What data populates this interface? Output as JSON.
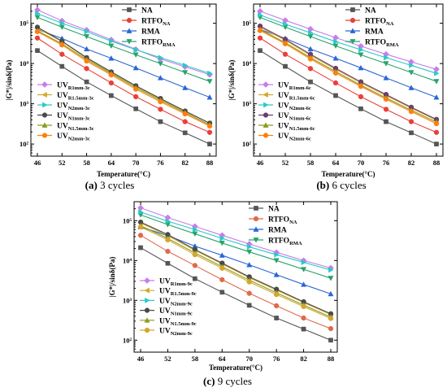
{
  "chart_data": [
    {
      "id": "a",
      "type": "line",
      "caption_letter": "(a)",
      "caption_text": "3 cycles",
      "xlabel": "Temperature(°C)",
      "ylabel": "|G*|/sinδ(Pa)",
      "x": [
        46,
        52,
        58,
        64,
        70,
        76,
        82,
        88
      ],
      "y_scale": "log",
      "ylim": [
        50,
        300000
      ],
      "y_ticks": [
        100,
        1000,
        10000,
        100000
      ],
      "y_tick_labels": [
        "10²",
        "10³",
        "10⁴",
        "10⁵"
      ],
      "series": [
        {
          "name": "NA",
          "sub": "",
          "color": "#555555",
          "marker": "square",
          "values": [
            21000,
            8500,
            3500,
            1600,
            750,
            360,
            190,
            100
          ]
        },
        {
          "name": "RTFO",
          "sub": "NA",
          "color": "#e8403a",
          "marker": "circle",
          "values": [
            43000,
            17000,
            7500,
            3300,
            1500,
            730,
            360,
            195
          ]
        },
        {
          "name": "RMA",
          "sub": "",
          "color": "#2a66d6",
          "marker": "triangle-up",
          "values": [
            70000,
            42000,
            23000,
            13500,
            7800,
            4400,
            2500,
            1450
          ]
        },
        {
          "name": "RTFO",
          "sub": "RMA",
          "color": "#2aa36a",
          "marker": "triangle-down",
          "values": [
            140000,
            80000,
            47000,
            27500,
            16500,
            10000,
            6000,
            3600
          ]
        },
        {
          "name": "UV",
          "sub": "R1mm-3c",
          "color": "#c77dea",
          "marker": "diamond",
          "values": [
            215000,
            115000,
            68000,
            39000,
            22500,
            13000,
            8300,
            5300
          ]
        },
        {
          "name": "UV",
          "sub": "R1.5mm-3c",
          "color": "#d4a72c",
          "marker": "triangle-left",
          "values": [
            75000,
            35000,
            13500,
            5900,
            2700,
            1300,
            640,
            330
          ]
        },
        {
          "name": "UV",
          "sub": "N2mm-3c",
          "color": "#2ac9c6",
          "marker": "triangle-right",
          "values": [
            175000,
            100000,
            62000,
            36000,
            22000,
            14000,
            9000,
            5700
          ]
        },
        {
          "name": "UV",
          "sub": "N1mm-3c",
          "color": "#4a4a4a",
          "marker": "circle",
          "values": [
            80000,
            36000,
            14000,
            6200,
            2800,
            1350,
            660,
            330
          ]
        },
        {
          "name": "UV",
          "sub": "N1.5mm-3c",
          "color": "#8a9c1a",
          "marker": "triangle-up",
          "values": [
            65000,
            31000,
            12500,
            5600,
            2500,
            1220,
            600,
            300
          ]
        },
        {
          "name": "UV",
          "sub": "N2mm-3c",
          "color": "#ff7f0e",
          "marker": "circle",
          "values": [
            62000,
            29000,
            11500,
            5200,
            2300,
            1120,
            560,
            280
          ]
        }
      ]
    },
    {
      "id": "b",
      "type": "line",
      "caption_letter": "(b)",
      "caption_text": "6 cycles",
      "xlabel": "Temperature(°C)",
      "ylabel": "|G*|/sinδ(Pa)",
      "x": [
        46,
        52,
        58,
        64,
        70,
        76,
        82,
        88
      ],
      "y_scale": "log",
      "ylim": [
        50,
        300000
      ],
      "y_ticks": [
        100,
        1000,
        10000,
        100000
      ],
      "y_tick_labels": [
        "10²",
        "10³",
        "10⁴",
        "10⁵"
      ],
      "series": [
        {
          "name": "NA",
          "sub": "",
          "color": "#555555",
          "marker": "square",
          "values": [
            21000,
            8500,
            3500,
            1600,
            750,
            360,
            190,
            100
          ]
        },
        {
          "name": "RTFO",
          "sub": "NA",
          "color": "#e8403a",
          "marker": "circle",
          "values": [
            43000,
            17000,
            7500,
            3300,
            1500,
            730,
            360,
            195
          ]
        },
        {
          "name": "RMA",
          "sub": "",
          "color": "#2a66d6",
          "marker": "triangle-up",
          "values": [
            70000,
            42000,
            23000,
            13500,
            7800,
            4400,
            2500,
            1450
          ]
        },
        {
          "name": "RTFO",
          "sub": "RMA",
          "color": "#2aa36a",
          "marker": "triangle-down",
          "values": [
            140000,
            80000,
            47000,
            27500,
            16500,
            10000,
            6000,
            3600
          ]
        },
        {
          "name": "UV",
          "sub": "R1mm-6c",
          "color": "#c77dea",
          "marker": "diamond",
          "values": [
            200000,
            118000,
            72000,
            44000,
            27000,
            17000,
            11000,
            7200
          ]
        },
        {
          "name": "UV",
          "sub": "R1.5mm-6c",
          "color": "#d4a72c",
          "marker": "triangle-left",
          "values": [
            80000,
            38000,
            16000,
            7200,
            3300,
            1600,
            780,
            390
          ]
        },
        {
          "name": "UV",
          "sub": "N2mm-6c",
          "color": "#2ac9c6",
          "marker": "triangle-right",
          "values": [
            160000,
            95000,
            58000,
            35000,
            22000,
            14000,
            9000,
            5700
          ]
        },
        {
          "name": "UV",
          "sub": "N1mm-6c",
          "color": "#6b3e6b",
          "marker": "circle",
          "values": [
            85000,
            40000,
            17000,
            7600,
            3500,
            1700,
            820,
            410
          ]
        },
        {
          "name": "UV",
          "sub": "N1.5mm-6c",
          "color": "#8a9c1a",
          "marker": "triangle-up",
          "values": [
            70000,
            33000,
            14000,
            6300,
            2900,
            1400,
            690,
            350
          ]
        },
        {
          "name": "UV",
          "sub": "N2mm-6c",
          "color": "#ff7f0e",
          "marker": "circle",
          "values": [
            66000,
            31000,
            13000,
            5800,
            2700,
            1300,
            640,
            320
          ]
        }
      ]
    },
    {
      "id": "c",
      "type": "line",
      "caption_letter": "(c)",
      "caption_text": "9 cycles",
      "xlabel": "Temperature(°C)",
      "ylabel": "|G*|/sinδ(Pa)",
      "x": [
        46,
        52,
        58,
        64,
        70,
        76,
        82,
        88
      ],
      "y_scale": "log",
      "ylim": [
        50,
        300000
      ],
      "y_ticks": [
        100,
        1000,
        10000,
        100000
      ],
      "y_tick_labels": [
        "10²",
        "10³",
        "10⁴",
        "10⁵"
      ],
      "series": [
        {
          "name": "NA",
          "sub": "",
          "color": "#555555",
          "marker": "square",
          "values": [
            21000,
            8500,
            3500,
            1600,
            750,
            360,
            190,
            100
          ]
        },
        {
          "name": "RTFO",
          "sub": "NA",
          "color": "#e06a4a",
          "marker": "circle",
          "values": [
            43000,
            17000,
            7500,
            3300,
            1500,
            730,
            360,
            195
          ]
        },
        {
          "name": "RMA",
          "sub": "",
          "color": "#2a66d6",
          "marker": "triangle-up",
          "values": [
            70000,
            42000,
            23000,
            13500,
            7800,
            4400,
            2500,
            1450
          ]
        },
        {
          "name": "RTFO",
          "sub": "RMA",
          "color": "#2aa36a",
          "marker": "triangle-down",
          "values": [
            140000,
            80000,
            47000,
            27500,
            16500,
            10000,
            6000,
            3600
          ]
        },
        {
          "name": "UV",
          "sub": "R1mm-9c",
          "color": "#c77dea",
          "marker": "diamond",
          "values": [
            210000,
            120000,
            72000,
            43000,
            26000,
            16000,
            10000,
            6500
          ]
        },
        {
          "name": "UV",
          "sub": "R1.5mm-9c",
          "color": "#d4a72c",
          "marker": "triangle-left",
          "values": [
            88000,
            42000,
            18000,
            8200,
            3700,
            1800,
            880,
            440
          ]
        },
        {
          "name": "UV",
          "sub": "N2mm-9c",
          "color": "#2ac9c6",
          "marker": "triangle-right",
          "values": [
            165000,
            97000,
            60000,
            36000,
            22000,
            14000,
            9000,
            5800
          ]
        },
        {
          "name": "UV",
          "sub": "N1mm-9c",
          "color": "#4a4a4a",
          "marker": "circle",
          "values": [
            92000,
            45000,
            19000,
            8600,
            3900,
            1900,
            920,
            460
          ]
        },
        {
          "name": "UV",
          "sub": "N1.5mm-9c",
          "color": "#8a9c1a",
          "marker": "triangle-up",
          "values": [
            75000,
            36000,
            15500,
            7000,
            3200,
            1550,
            760,
            380
          ]
        },
        {
          "name": "UV",
          "sub": "N2mm-9c",
          "color": "#d4a72c",
          "marker": "circle",
          "values": [
            70000,
            33000,
            14000,
            6400,
            2900,
            1400,
            700,
            350
          ]
        }
      ]
    }
  ]
}
